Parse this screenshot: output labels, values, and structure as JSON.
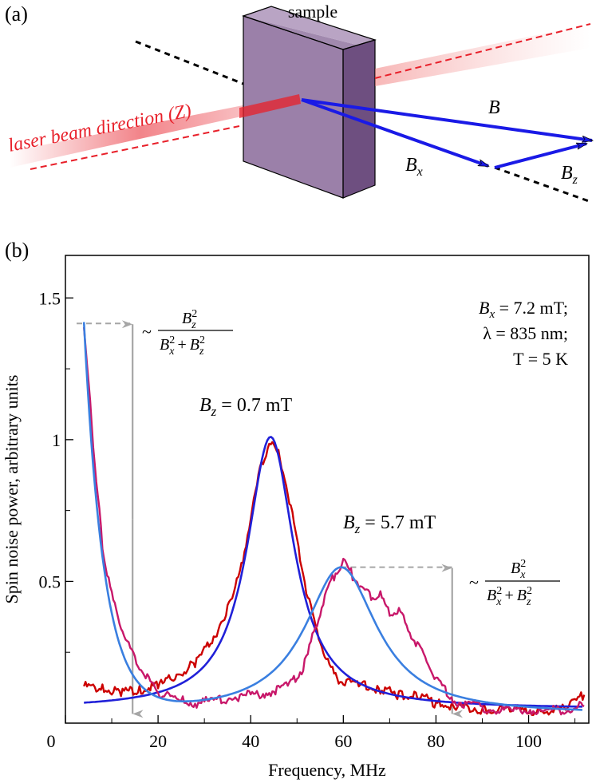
{
  "panel_a": {
    "label": "(a)",
    "sample_label": "sample",
    "beam_label": "laser beam direction (Z)",
    "vec_B": "B",
    "vec_Bx_main": "B",
    "vec_Bx_sub": "x",
    "vec_Bz_main": "B",
    "vec_Bz_sub": "z",
    "colors": {
      "beam": "#e8202a",
      "vector": "#1a1ae6",
      "sample": "#8c6f9c"
    }
  },
  "panel_b": {
    "label": "(b)",
    "conditions": [
      "B",
      "x",
      " = 7.2 mT;",
      "λ = 835 nm;",
      "T = 5 K"
    ],
    "peak1_label": [
      "B",
      "z",
      " = 0.7 mT"
    ],
    "peak2_label": [
      "B",
      "z",
      " = 5.7 mT"
    ],
    "formula_left": {
      "prefix": "~",
      "num": "B",
      "num_sub": "z",
      "num_sup": "2",
      "den1": "B",
      "den1_sub": "x",
      "den1_sup": "2",
      "plus": "+",
      "den2": "B",
      "den2_sub": "z",
      "den2_sup": "2"
    },
    "formula_right": {
      "prefix": "~",
      "num": "B",
      "num_sub": "x",
      "num_sup": "2",
      "den1": "B",
      "den1_sub": "x",
      "den1_sup": "2",
      "plus": "+",
      "den2": "B",
      "den2_sub": "z",
      "den2_sup": "2"
    }
  },
  "chart_data": {
    "type": "line",
    "xlabel": "Frequency, MHz",
    "ylabel": "Spin noise power, arbitrary units",
    "xlim": [
      0,
      113
    ],
    "ylim": [
      0,
      1.65
    ],
    "xticks": [
      0,
      20,
      40,
      60,
      80,
      100
    ],
    "yticks": [
      0.5,
      1,
      1.5
    ],
    "ytick_labels": [
      "0.5",
      "1",
      "1.5"
    ],
    "series": [
      {
        "color": "#cc0000",
        "kind": "data",
        "x": [
          4,
          8,
          12,
          16,
          20,
          24,
          28,
          32,
          36,
          38,
          40,
          42,
          44,
          46,
          48,
          50,
          52,
          54,
          56,
          58,
          60,
          64,
          68,
          72,
          76,
          80,
          84,
          90,
          96,
          102,
          108,
          112
        ],
        "y": [
          0.13,
          0.12,
          0.11,
          0.12,
          0.13,
          0.17,
          0.21,
          0.3,
          0.44,
          0.55,
          0.72,
          0.89,
          0.99,
          0.95,
          0.82,
          0.64,
          0.47,
          0.33,
          0.24,
          0.17,
          0.14,
          0.14,
          0.12,
          0.1,
          0.1,
          0.07,
          0.06,
          0.05,
          0.05,
          0.04,
          0.05,
          0.1
        ]
      },
      {
        "color": "#2020d8",
        "kind": "fit",
        "center": 44.3,
        "width": 6.2,
        "amp": 0.96,
        "offset": 0.05,
        "xrange": [
          4,
          112
        ]
      },
      {
        "color": "#c8186a",
        "kind": "data",
        "x": [
          4,
          5,
          6,
          7,
          8,
          10,
          12,
          14,
          16,
          18,
          20,
          24,
          28,
          32,
          36,
          40,
          44,
          48,
          50,
          52,
          54,
          56,
          58,
          60,
          62,
          64,
          66,
          68,
          70,
          72,
          74,
          76,
          78,
          80,
          84,
          88,
          92,
          96,
          100,
          104,
          108,
          112
        ],
        "y": [
          1.4,
          1.2,
          0.98,
          0.8,
          0.62,
          0.45,
          0.34,
          0.26,
          0.2,
          0.15,
          0.11,
          0.08,
          0.07,
          0.08,
          0.09,
          0.1,
          0.11,
          0.13,
          0.16,
          0.22,
          0.34,
          0.45,
          0.52,
          0.57,
          0.52,
          0.48,
          0.44,
          0.45,
          0.38,
          0.4,
          0.33,
          0.28,
          0.22,
          0.15,
          0.08,
          0.06,
          0.05,
          0.04,
          0.05,
          0.04,
          0.05,
          0.06
        ]
      },
      {
        "color": "#3a7fe0",
        "kind": "fit2",
        "center": 59.5,
        "width": 9.5,
        "amp": 0.52,
        "offset": 0.03,
        "xrange": [
          4,
          112
        ]
      }
    ],
    "annotations": [
      {
        "kind": "arrow",
        "x": 14.5,
        "y_top": 1.41,
        "y_bot": 0.03,
        "color": "#a6a6a6"
      },
      {
        "kind": "arrow",
        "x": 83.5,
        "y_top": 0.55,
        "y_bot": 0.03,
        "color": "#a6a6a6"
      }
    ]
  }
}
